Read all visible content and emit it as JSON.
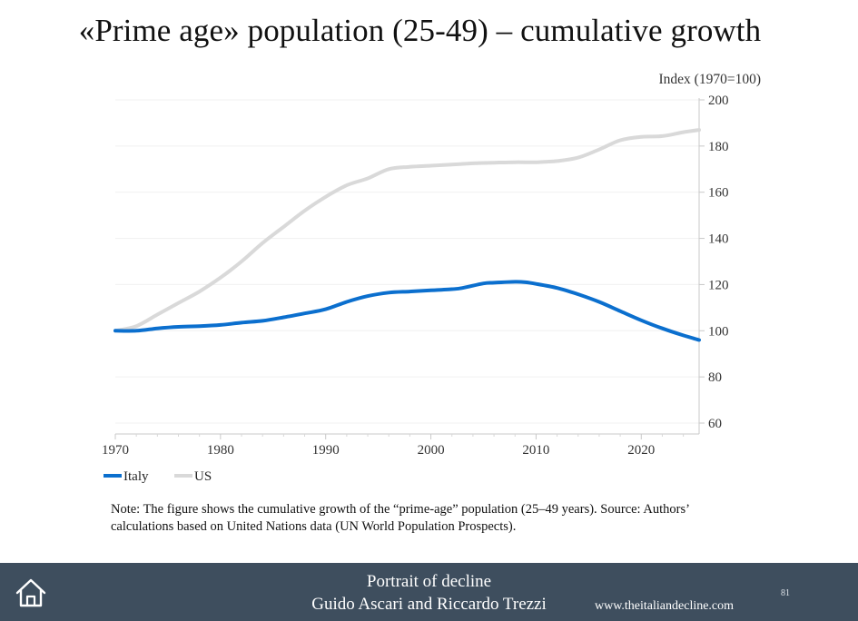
{
  "slide": {
    "title": "«Prime age» population (25-49) – cumulative growth",
    "note": "Note: The figure shows the cumulative growth of the “prime-age” population (25–49 years). Source: Authors’ calculations based on United Nations data (UN World Population Prospects)."
  },
  "footer": {
    "title": "Portrait of decline",
    "authors": "Guido Ascari and Riccardo Trezzi",
    "page_number": "81",
    "url": "www.theitaliandecline.com",
    "icon": "home-icon"
  },
  "chart_data": {
    "type": "line",
    "title": "«Prime age» population (25-49) – cumulative growth",
    "ylabel": "Index (1970=100)",
    "xlabel": "",
    "xlim": [
      1970,
      2025.5
    ],
    "ylim": [
      60,
      200
    ],
    "x_ticks": [
      1970,
      1980,
      1990,
      2000,
      2010,
      2020
    ],
    "y_ticks": [
      60,
      80,
      100,
      120,
      140,
      160,
      180,
      200
    ],
    "y_axis_position": "right",
    "grid": "horizontal",
    "legend_position": "bottom-left",
    "series": [
      {
        "name": "Italy",
        "color": "#0b6fce",
        "x": [
          1970,
          1972,
          1974,
          1976,
          1978,
          1980,
          1982,
          1984,
          1986,
          1988,
          1990,
          1992,
          1994,
          1996,
          1998,
          2000,
          2002,
          2003,
          2005,
          2006,
          2008,
          2009,
          2010,
          2012,
          2014,
          2016,
          2018,
          2020,
          2022,
          2024,
          2025.5
        ],
        "values": [
          100,
          100,
          101,
          101.7,
          102,
          102.5,
          103.5,
          104.3,
          105.8,
          107.5,
          109.3,
          112.5,
          115,
          116.5,
          117,
          117.5,
          118,
          118.5,
          120.5,
          120.8,
          121.2,
          121,
          120.3,
          118.5,
          115.8,
          112.5,
          108.5,
          104.5,
          101,
          98,
          96
        ]
      },
      {
        "name": "US",
        "color": "#d9d9d9",
        "x": [
          1970,
          1972,
          1974,
          1976,
          1978,
          1980,
          1982,
          1984,
          1986,
          1988,
          1990,
          1992,
          1994,
          1996,
          1998,
          2000,
          2002,
          2004,
          2006,
          2008,
          2010,
          2012,
          2014,
          2016,
          2018,
          2020,
          2022,
          2024,
          2025.5
        ],
        "values": [
          100,
          102,
          107,
          112,
          117,
          123,
          130,
          138,
          145,
          152,
          158,
          163,
          166,
          170,
          171,
          171.5,
          172,
          172.5,
          172.8,
          173,
          173,
          173.5,
          175,
          178.5,
          182.5,
          184,
          184.3,
          186,
          187
        ]
      }
    ]
  }
}
